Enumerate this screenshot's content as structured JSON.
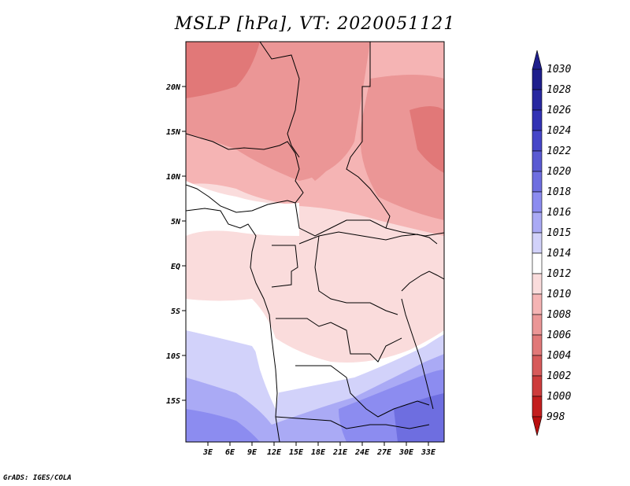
{
  "title": "MSLP [hPa], VT: 2020051121",
  "credit": "GrADS: IGES/COLA",
  "lat_labels": [
    "20N",
    "15N",
    "10N",
    "5N",
    "EQ",
    "5S",
    "10S",
    "15S"
  ],
  "lon_labels": [
    "3E",
    "6E",
    "9E",
    "12E",
    "15E",
    "18E",
    "21E",
    "24E",
    "27E",
    "30E",
    "33E"
  ],
  "colorbar": {
    "levels": [
      "1030",
      "1028",
      "1026",
      "1024",
      "1022",
      "1020",
      "1018",
      "1016",
      "1015",
      "1014",
      "1012",
      "1010",
      "1008",
      "1006",
      "1004",
      "1002",
      "1000",
      "998"
    ],
    "colors": [
      "#1e1e8c",
      "#2828a0",
      "#3232b4",
      "#4646c8",
      "#5a5ad2",
      "#6e6ee0",
      "#8c8cf0",
      "#aaaaf5",
      "#d2d2fa",
      "#ffffff",
      "#fadcdc",
      "#f5b4b4",
      "#eb9696",
      "#e17878",
      "#d75a5a",
      "#cd3c3c",
      "#c31e1e",
      "#b90f0f"
    ]
  }
}
